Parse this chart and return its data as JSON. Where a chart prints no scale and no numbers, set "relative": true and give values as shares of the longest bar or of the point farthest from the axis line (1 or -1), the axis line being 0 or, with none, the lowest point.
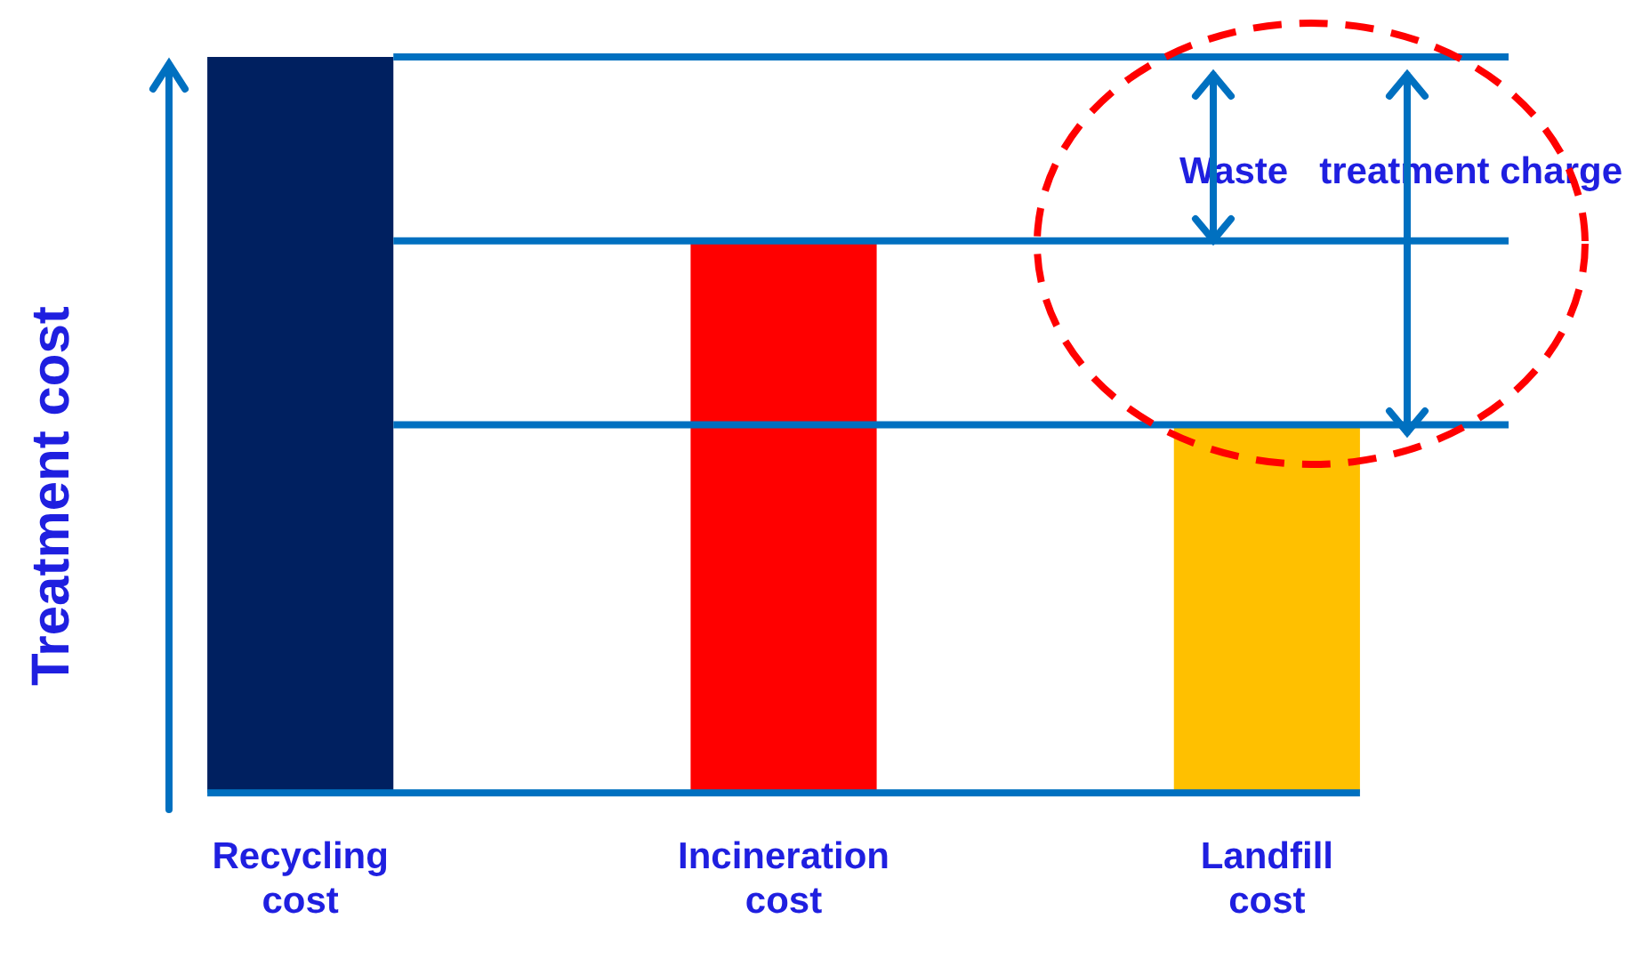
{
  "chart_data": {
    "type": "bar",
    "relative": true,
    "ylabel": "Treatment cost",
    "categories": [
      "Recycling cost",
      "Incineration cost",
      "Landfill cost"
    ],
    "values": [
      1,
      0.75,
      0.5
    ],
    "colors": [
      "#002060",
      "#ff0000",
      "#ffc000"
    ],
    "ref_lines": [
      {
        "axis": "y",
        "value": 1,
        "color": "#0070c0"
      },
      {
        "axis": "y",
        "value": 0.75,
        "color": "#0070c0"
      },
      {
        "axis": "y",
        "value": 0.5,
        "color": "#0070c0"
      }
    ],
    "annotations": [
      "Waste   treatment charge"
    ],
    "grid": false,
    "legend": false
  }
}
